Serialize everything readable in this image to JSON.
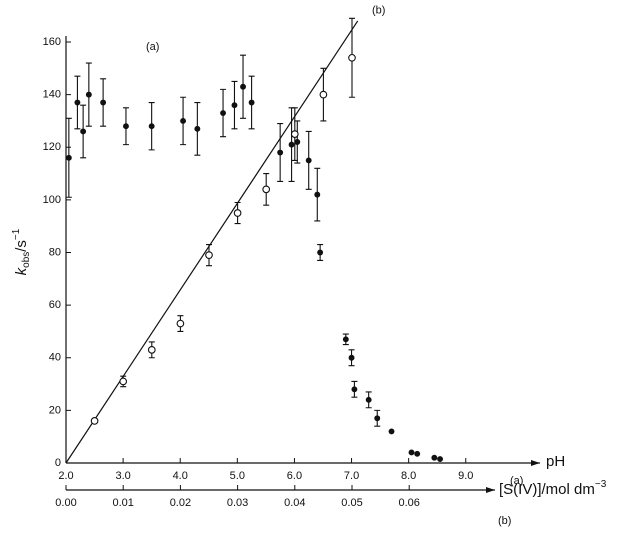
{
  "chart_data": {
    "type": "scatter",
    "ylabel": {
      "main": "k",
      "sub": "obs",
      "rest": "/s",
      "sup": "−1"
    },
    "xlabel": "pH",
    "x2label": {
      "main": "[S(IV)]/mol dm",
      "sup": "−3"
    },
    "ylim": [
      0,
      160
    ],
    "yticks": [
      0,
      20,
      40,
      60,
      80,
      100,
      120,
      140,
      160
    ],
    "xlim": [
      2,
      10.3
    ],
    "xticks": [
      {
        "value": 2,
        "label": "2.0"
      },
      {
        "value": 3,
        "label": "3.0"
      },
      {
        "value": 4,
        "label": "4.0"
      },
      {
        "value": 5,
        "label": "5.0"
      },
      {
        "value": 6,
        "label": "6.0"
      },
      {
        "value": 7,
        "label": "7.0"
      },
      {
        "value": 8,
        "label": "8.0"
      },
      {
        "value": 9,
        "label": "9.0"
      }
    ],
    "x2lim": [
      0,
      0.075
    ],
    "x2ticks": [
      {
        "value": 0,
        "label": "0.00"
      },
      0.01,
      0.02,
      0.03,
      0.04,
      0.05,
      0.06
    ],
    "series": [
      {
        "name": "(a)",
        "axis": "x",
        "marker": "filled",
        "color": "#111",
        "x": [
          2.05,
          2.2,
          2.3,
          2.4,
          2.65,
          3.05,
          3.5,
          4.05,
          4.3,
          4.75,
          4.95,
          5.1,
          5.25,
          5.75,
          5.95,
          6.05,
          6.25,
          6.4,
          6.45,
          6.9,
          7.0,
          7.05,
          7.3,
          7.45,
          7.7,
          8.05,
          8.15,
          8.45,
          8.55
        ],
        "values": [
          116,
          137,
          126,
          140,
          137,
          128,
          128,
          130,
          127,
          133,
          136,
          143,
          137,
          118,
          121,
          122,
          115,
          102,
          80,
          47,
          40,
          28,
          24,
          17,
          12,
          4,
          3.5,
          2,
          1.5
        ],
        "errors": [
          15,
          10,
          10,
          12,
          9,
          7,
          9,
          9,
          10,
          9,
          9,
          12,
          10,
          11,
          14,
          8,
          11,
          10,
          3,
          2,
          3,
          3,
          3,
          3,
          null,
          null,
          null,
          null,
          null
        ]
      },
      {
        "name": "(b)",
        "axis": "x2",
        "marker": "open",
        "color": "#111",
        "x": [
          0.005,
          0.01,
          0.015,
          0.02,
          0.025,
          0.03,
          0.035,
          0.04,
          0.045,
          0.05
        ],
        "values": [
          16,
          31,
          43,
          53,
          79,
          95,
          104,
          125,
          140,
          154
        ],
        "errors": [
          null,
          2,
          3,
          3,
          4,
          4,
          6,
          10,
          10,
          15
        ]
      }
    ],
    "fit_line": {
      "x": [
        0,
        0.051
      ],
      "y": [
        0,
        168
      ]
    },
    "annotations": [
      {
        "text": "(a)",
        "x": 3.4,
        "y": 158
      },
      {
        "text": "(b)",
        "x": 0.0535,
        "y": 172
      }
    ]
  }
}
